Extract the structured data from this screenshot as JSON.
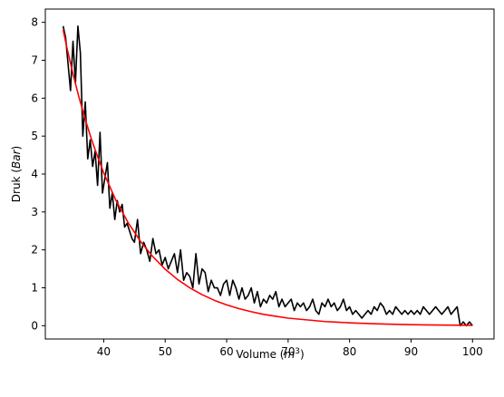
{
  "chart_data": {
    "type": "line",
    "title": "",
    "xlabel_main": "Volume (",
    "xlabel_math": "m",
    "xlabel_sup": "3",
    "xlabel_close": ")",
    "ylabel_main": "Druk (",
    "ylabel_math": "Bar",
    "ylabel_close": ")",
    "xlim": [
      30.5,
      103.5
    ],
    "ylim": [
      -0.35,
      8.35
    ],
    "xticks": [
      40,
      50,
      60,
      70,
      80,
      90,
      100
    ],
    "yticks": [
      0,
      1,
      2,
      3,
      4,
      5,
      6,
      7,
      8
    ],
    "grid": false,
    "series": [
      {
        "color": "#000000",
        "kind": "measured",
        "x": [
          33.4,
          33.8,
          34.2,
          34.6,
          35.0,
          35.4,
          35.8,
          36.2,
          36.6,
          37.0,
          37.4,
          37.8,
          38.2,
          38.6,
          39.0,
          39.4,
          39.8,
          40.2,
          40.6,
          41.0,
          41.4,
          41.8,
          42.2,
          42.6,
          43.0,
          43.4,
          43.8,
          44.2,
          44.6,
          45.0,
          45.5,
          46.0,
          46.5,
          47.0,
          47.5,
          48.0,
          48.5,
          49.0,
          49.5,
          50.0,
          50.5,
          51.0,
          51.5,
          52.0,
          52.5,
          53.0,
          53.5,
          54.0,
          54.5,
          55.0,
          55.5,
          56.0,
          56.5,
          57.0,
          57.5,
          58.0,
          58.5,
          59.0,
          59.5,
          60.0,
          60.5,
          61.0,
          61.5,
          62.0,
          62.5,
          63.0,
          63.5,
          64.0,
          64.5,
          65.0,
          65.5,
          66.0,
          66.5,
          67.0,
          67.5,
          68.0,
          68.5,
          69.0,
          69.5,
          70.0,
          70.5,
          71.0,
          71.5,
          72.0,
          72.5,
          73.0,
          73.5,
          74.0,
          74.5,
          75.0,
          75.5,
          76.0,
          76.5,
          77.0,
          77.5,
          78.0,
          78.5,
          79.0,
          79.5,
          80.0,
          80.5,
          81.0,
          81.5,
          82.0,
          82.5,
          83.0,
          83.5,
          84.0,
          84.5,
          85.0,
          85.5,
          86.0,
          86.5,
          87.0,
          87.5,
          88.0,
          88.5,
          89.0,
          89.5,
          90.0,
          90.5,
          91.0,
          91.5,
          92.0,
          92.5,
          93.0,
          93.5,
          94.0,
          94.5,
          95.0,
          95.5,
          96.0,
          96.5,
          97.0,
          97.5,
          98.0,
          98.5,
          99.0,
          99.5,
          100.0
        ],
        "y": [
          7.9,
          7.6,
          6.9,
          6.2,
          7.5,
          6.4,
          7.9,
          7.2,
          5.0,
          5.9,
          4.4,
          4.9,
          4.2,
          4.6,
          3.7,
          5.1,
          3.5,
          3.9,
          4.3,
          3.1,
          3.5,
          2.8,
          3.3,
          3.0,
          3.2,
          2.6,
          2.7,
          2.5,
          2.3,
          2.2,
          2.8,
          1.9,
          2.2,
          2.0,
          1.7,
          2.3,
          1.9,
          2.0,
          1.6,
          1.8,
          1.5,
          1.7,
          1.9,
          1.4,
          2.0,
          1.2,
          1.4,
          1.3,
          1.0,
          1.9,
          1.1,
          1.5,
          1.4,
          0.9,
          1.2,
          1.0,
          1.0,
          0.8,
          1.1,
          1.2,
          0.8,
          1.2,
          1.0,
          0.7,
          1.0,
          0.7,
          0.8,
          1.0,
          0.6,
          0.9,
          0.5,
          0.7,
          0.6,
          0.8,
          0.7,
          0.9,
          0.5,
          0.7,
          0.5,
          0.6,
          0.7,
          0.4,
          0.6,
          0.5,
          0.6,
          0.4,
          0.5,
          0.7,
          0.4,
          0.3,
          0.6,
          0.5,
          0.7,
          0.5,
          0.6,
          0.4,
          0.5,
          0.7,
          0.4,
          0.5,
          0.3,
          0.4,
          0.3,
          0.2,
          0.3,
          0.4,
          0.3,
          0.5,
          0.4,
          0.6,
          0.5,
          0.3,
          0.4,
          0.3,
          0.5,
          0.4,
          0.3,
          0.4,
          0.3,
          0.4,
          0.3,
          0.4,
          0.3,
          0.5,
          0.4,
          0.3,
          0.4,
          0.5,
          0.4,
          0.3,
          0.4,
          0.5,
          0.3,
          0.4,
          0.5,
          0.0,
          0.1,
          0.0,
          0.1,
          0.0
        ]
      },
      {
        "color": "#ff0000",
        "kind": "fit",
        "x": [
          33.4,
          34,
          35,
          36,
          37,
          38,
          39,
          40,
          42,
          44,
          46,
          48,
          50,
          52,
          54,
          56,
          58,
          60,
          62,
          64,
          66,
          68,
          70,
          72,
          74,
          76,
          78,
          80,
          82,
          84,
          86,
          88,
          90,
          92,
          94,
          96,
          98,
          100
        ],
        "y": [
          7.8,
          7.34,
          6.64,
          6.01,
          5.44,
          4.92,
          4.46,
          4.03,
          3.3,
          2.71,
          2.22,
          1.82,
          1.49,
          1.22,
          1.0,
          0.82,
          0.67,
          0.55,
          0.45,
          0.37,
          0.3,
          0.25,
          0.2,
          0.17,
          0.14,
          0.11,
          0.093,
          0.076,
          0.063,
          0.051,
          0.042,
          0.034,
          0.028,
          0.023,
          0.019,
          0.016,
          0.013,
          0.01
        ]
      }
    ]
  }
}
